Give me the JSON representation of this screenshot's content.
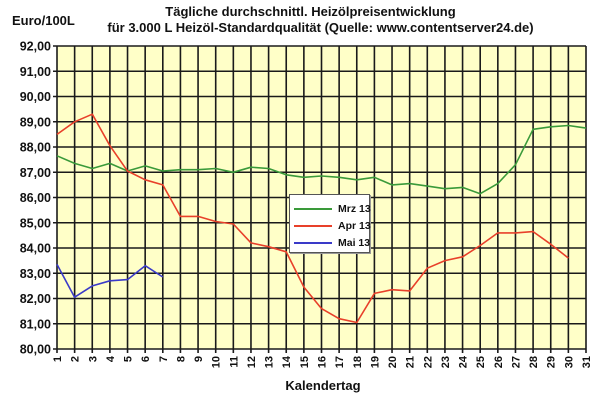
{
  "header": {
    "title_line1": "Tägliche durchschnittl. Heizölpreisentwicklung",
    "title_line2": "für 3.000 L Heizöl-Standardqualität (Quelle: www.contentserver24.de)",
    "y_unit": "Euro/100L"
  },
  "colors": {
    "plot_background": "#ffffc8",
    "grid": "#1a1a1a",
    "mrz": "#3a9a3a",
    "apr": "#e8402a",
    "mai": "#3a3ac8"
  },
  "chart_data": {
    "type": "line",
    "title": "Tägliche durchschnittl. Heizölpreisentwicklung für 3.000 L Heizöl-Standardqualität (Quelle: www.contentserver24.de)",
    "xlabel": "Kalendertag",
    "ylabel": "Euro/100L",
    "ylim": [
      80,
      92
    ],
    "y_ticks": [
      "80,00",
      "81,00",
      "82,00",
      "83,00",
      "84,00",
      "85,00",
      "86,00",
      "87,00",
      "88,00",
      "89,00",
      "90,00",
      "91,00",
      "92,00"
    ],
    "x": [
      1,
      2,
      3,
      4,
      5,
      6,
      7,
      8,
      9,
      10,
      11,
      12,
      13,
      14,
      15,
      16,
      17,
      18,
      19,
      20,
      21,
      22,
      23,
      24,
      25,
      26,
      27,
      28,
      29,
      30,
      31
    ],
    "grid": true,
    "legend_position": "center",
    "series": [
      {
        "name": "Mrz 13",
        "color": "#3a9a3a",
        "values": [
          87.65,
          87.35,
          87.15,
          87.35,
          87.05,
          87.25,
          87.05,
          87.1,
          87.1,
          87.15,
          87.0,
          87.2,
          87.15,
          86.9,
          86.8,
          86.85,
          86.8,
          86.7,
          86.8,
          86.5,
          86.55,
          86.45,
          86.35,
          86.4,
          86.15,
          86.55,
          87.3,
          88.7,
          88.8,
          88.85,
          88.75
        ]
      },
      {
        "name": "Apr 13",
        "color": "#e8402a",
        "values": [
          88.5,
          89.0,
          89.3,
          88.05,
          87.05,
          86.7,
          86.5,
          85.25,
          85.25,
          85.05,
          84.95,
          84.2,
          84.05,
          83.85,
          82.45,
          81.6,
          81.2,
          81.05,
          82.2,
          82.35,
          82.3,
          83.2,
          83.5,
          83.65,
          84.1,
          84.6,
          84.6,
          84.65,
          84.15,
          83.6
        ]
      },
      {
        "name": "Mai 13",
        "color": "#3a3ac8",
        "values": [
          83.35,
          82.05,
          82.5,
          82.7,
          82.75,
          83.3,
          82.85
        ]
      }
    ]
  },
  "legend": {
    "items": [
      {
        "label": "Mrz 13"
      },
      {
        "label": "Apr 13"
      },
      {
        "label": "Mai 13"
      }
    ]
  }
}
